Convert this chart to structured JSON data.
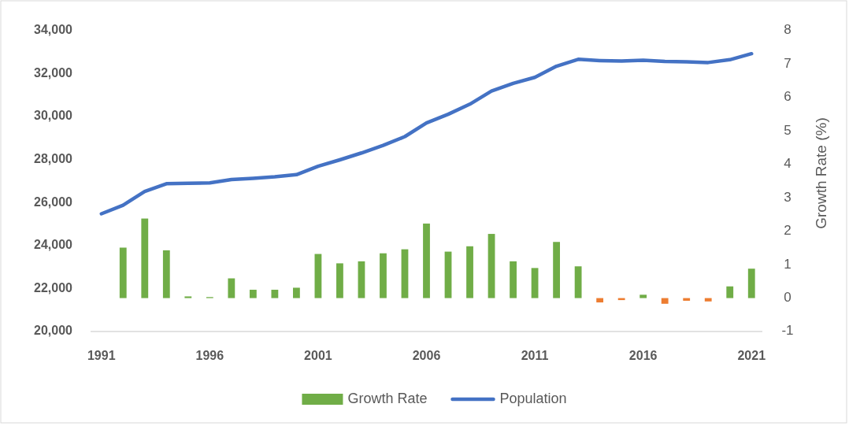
{
  "chart_data": {
    "type": "bar",
    "categories": [
      "1991",
      null,
      null,
      null,
      null,
      "1996",
      null,
      null,
      null,
      null,
      "2001",
      null,
      null,
      null,
      null,
      "2006",
      null,
      null,
      null,
      null,
      "2011",
      null,
      null,
      null,
      null,
      "2016",
      null,
      null,
      null,
      null,
      "2021"
    ],
    "series": [
      {
        "name": "Growth Rate",
        "axis": "y2",
        "color": "#70ad47",
        "colors": [
          null,
          "#70ad47",
          "#70ad47",
          "#70ad47",
          "#70ad47",
          "#70ad47",
          "#70ad47",
          "#70ad47",
          "#70ad47",
          "#70ad47",
          "#70ad47",
          "#70ad47",
          "#70ad47",
          "#70ad47",
          "#70ad47",
          "#70ad47",
          "#70ad47",
          "#70ad47",
          "#70ad47",
          "#70ad47",
          "#70ad47",
          "#70ad47",
          "#70ad47",
          "#ed7d31",
          "#ed7d31",
          "#70ad47",
          "#ed7d31",
          "#ed7d31",
          "#ed7d31",
          "#70ad47",
          "#70ad47"
        ],
        "values": [
          null,
          1.51,
          2.38,
          1.43,
          0.05,
          0.03,
          0.59,
          0.25,
          0.25,
          0.31,
          1.32,
          1.04,
          1.1,
          1.34,
          1.46,
          2.23,
          1.39,
          1.55,
          1.92,
          1.1,
          0.9,
          1.68,
          0.95,
          -0.13,
          -0.06,
          0.1,
          -0.17,
          -0.08,
          -0.1,
          0.35,
          0.88
        ]
      },
      {
        "name": "Population",
        "type": "line",
        "color": "#4472c4",
        "values": [
          25480,
          25880,
          26520,
          26880,
          26900,
          26920,
          27070,
          27130,
          27200,
          27300,
          27690,
          27990,
          28310,
          28660,
          29070,
          29710,
          30110,
          30580,
          31190,
          31550,
          31830,
          32350,
          32670,
          32610,
          32590,
          32630,
          32570,
          32550,
          32520,
          32650,
          32930
        ]
      }
    ],
    "ylim": [
      20000,
      34000
    ],
    "yticks": [
      {
        "value": 20000,
        "label": "20,000"
      },
      {
        "value": 22000,
        "label": "22,000"
      },
      {
        "value": 24000,
        "label": "24,000"
      },
      {
        "value": 26000,
        "label": "26,000"
      },
      {
        "value": 28000,
        "label": "28,000"
      },
      {
        "value": 30000,
        "label": "30,000"
      },
      {
        "value": 32000,
        "label": "32,000"
      },
      {
        "value": 34000,
        "label": "34,000"
      }
    ],
    "y2lim": [
      -1,
      8
    ],
    "y2ticks": [
      -1,
      0,
      1,
      2,
      3,
      4,
      5,
      6,
      7,
      8
    ],
    "y2label": "Growth Rate (%)",
    "legend": "bottom"
  }
}
